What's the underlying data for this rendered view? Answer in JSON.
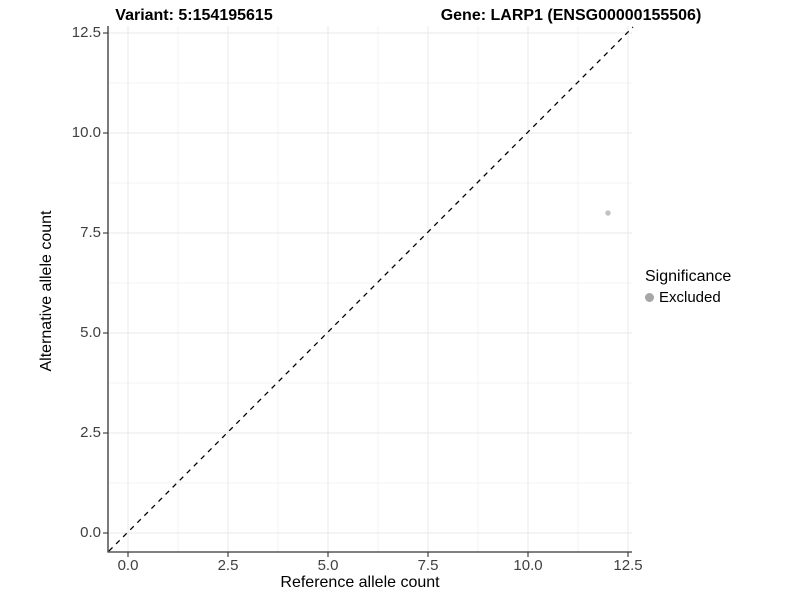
{
  "header": {
    "title_variant": "Variant: 5:154195615",
    "title_gene": "Gene: LARP1 (ENSG00000155506)"
  },
  "axes": {
    "x": {
      "label": "Reference allele count",
      "ticks": [
        "0.0",
        "2.5",
        "5.0",
        "7.5",
        "10.0",
        "12.5"
      ]
    },
    "y": {
      "label": "Alternative allele count",
      "ticks": [
        "12.5",
        "10.0",
        "7.5",
        "5.0",
        "2.5",
        "0.0"
      ]
    }
  },
  "legend": {
    "title": "Significance",
    "items": [
      {
        "label": "Excluded",
        "color": "#a6a6a6"
      }
    ]
  },
  "chart_data": {
    "type": "scatter",
    "title": "Variant: 5:154195615   Gene: LARP1 (ENSG00000155506)",
    "xlabel": "Reference allele count",
    "ylabel": "Alternative allele count",
    "xlim": [
      -0.5,
      13.1
    ],
    "ylim": [
      -0.5,
      12.6
    ],
    "xticks": [
      0,
      2.5,
      5,
      7.5,
      10,
      12.5
    ],
    "yticks": [
      0,
      2.5,
      5,
      7.5,
      10,
      12.5
    ],
    "grid": true,
    "legend_position": "right",
    "series": [
      {
        "name": "Excluded",
        "color": "#c2c2c2",
        "points": [
          {
            "x": 12,
            "y": 8
          }
        ]
      }
    ],
    "reference_line": {
      "type": "identity",
      "equation": "y = x",
      "style": "dashed",
      "color": "#000000"
    }
  }
}
